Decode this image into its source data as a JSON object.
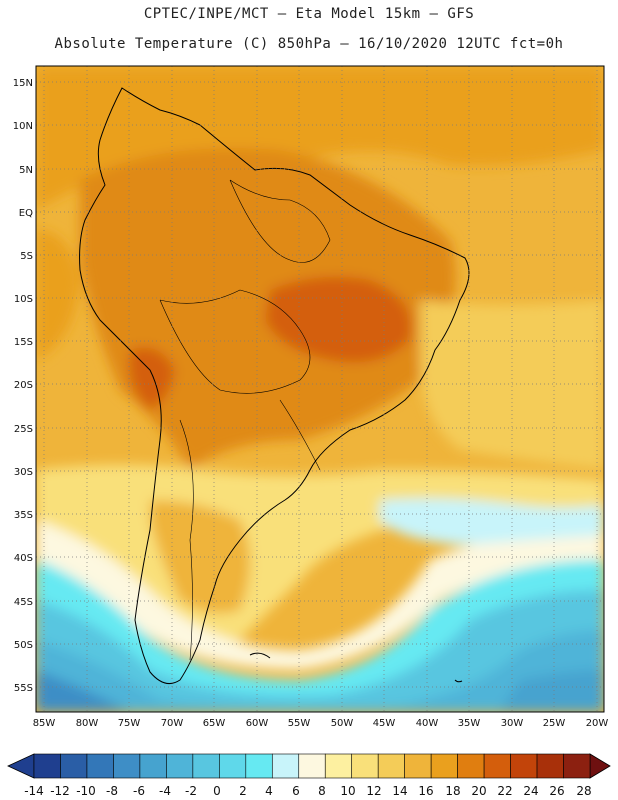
{
  "header": {
    "line1": "CPTEC/INPE/MCT –  Eta Model 15km – GFS",
    "line2": "Absolute Temperature (C) 850hPa – 16/10/2020 12UTC fct=0h"
  },
  "map": {
    "lat_labels": [
      "15N",
      "10N",
      "5N",
      "EQ",
      "5S",
      "10S",
      "15S",
      "20S",
      "25S",
      "30S",
      "35S",
      "40S",
      "45S",
      "50S",
      "55S"
    ],
    "lon_labels": [
      "85W",
      "80W",
      "75W",
      "70W",
      "65W",
      "60W",
      "55W",
      "50W",
      "45W",
      "40W",
      "35W",
      "30W",
      "25W",
      "20W"
    ]
  },
  "colorbar": {
    "labels": [
      "-14",
      "-12",
      "-10",
      "-8",
      "-6",
      "-4",
      "-2",
      "0",
      "2",
      "4",
      "6",
      "8",
      "10",
      "12",
      "14",
      "16",
      "18",
      "20",
      "22",
      "24",
      "26",
      "28"
    ],
    "colors": [
      "#1f3f8f",
      "#2a5ea6",
      "#3377b8",
      "#3e8ec6",
      "#46a3cf",
      "#4fb4d8",
      "#58c6e0",
      "#5fd8ea",
      "#66e9f2",
      "#c8f4fa",
      "#fdf8e0",
      "#fdf0a0",
      "#f9e07a",
      "#f4cc58",
      "#efb43a",
      "#eaa01e",
      "#e07e10",
      "#d45e0c",
      "#c2440a",
      "#a8300a",
      "#8c2010"
    ]
  }
}
